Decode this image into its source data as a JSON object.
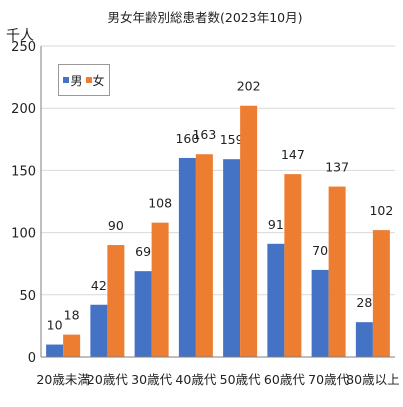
{
  "chart_data": {
    "type": "bar",
    "title": "男女年齢別総患者数(2023年10月)",
    "unit_label": "千人",
    "categories": [
      "20歳未満",
      "20歳代",
      "30歳代",
      "40歳代",
      "50歳代",
      "60歳代",
      "70歳代",
      "80歳以上"
    ],
    "series": [
      {
        "name": "男",
        "color": "#4472C4",
        "values": [
          10,
          42,
          69,
          160,
          159,
          91,
          70,
          28
        ]
      },
      {
        "name": "女",
        "color": "#ED7D31",
        "values": [
          18,
          90,
          108,
          163,
          202,
          147,
          137,
          102
        ]
      }
    ],
    "ylim": [
      0,
      250
    ],
    "yticks": [
      0,
      50,
      100,
      150,
      200,
      250
    ],
    "grid": true,
    "legend_position": "top-left",
    "colors": {
      "grid": "#D9D9D9",
      "axis": "#7F7F7F"
    }
  }
}
